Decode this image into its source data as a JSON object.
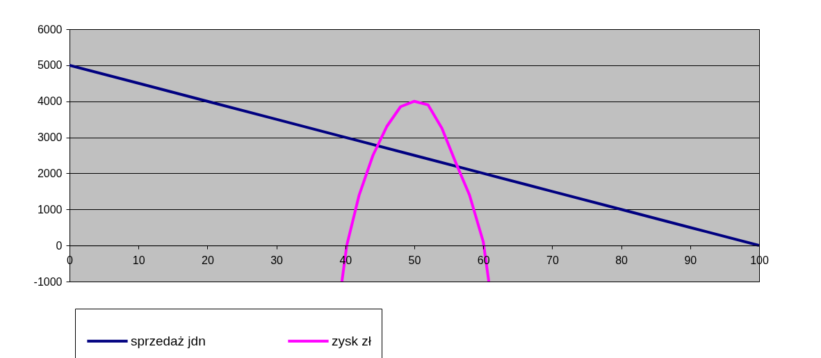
{
  "chart_data": {
    "type": "line",
    "xlim": [
      0,
      100
    ],
    "xticks": [
      0,
      10,
      20,
      30,
      40,
      50,
      60,
      70,
      80,
      90,
      100
    ],
    "ylim": [
      -1000,
      6000
    ],
    "yticks": [
      -1000,
      0,
      1000,
      2000,
      3000,
      4000,
      5000,
      6000
    ],
    "grid": "y",
    "legend": "bottom",
    "marker": "none",
    "line_style": "solid",
    "series": [
      {
        "name": "sprzedaż jdn",
        "color": "#000080",
        "x": [
          0,
          10,
          20,
          30,
          40,
          50,
          60,
          70,
          80,
          90,
          100
        ],
        "values": [
          5000,
          4500,
          4000,
          3500,
          3000,
          2500,
          2000,
          1500,
          1000,
          500,
          0
        ]
      },
      {
        "name": "zysk zł",
        "color": "#ff00ff",
        "x": [
          39.5,
          40.2,
          42,
          44,
          46,
          48,
          50,
          52,
          54,
          56,
          58,
          60,
          60.8
        ],
        "values": [
          -1000,
          0,
          1400,
          2500,
          3300,
          3850,
          4000,
          3900,
          3250,
          2300,
          1400,
          100,
          -1000
        ]
      }
    ]
  }
}
